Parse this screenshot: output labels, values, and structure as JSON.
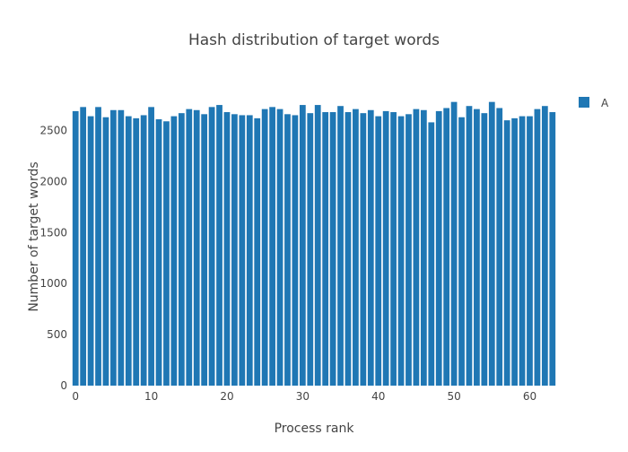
{
  "chart_data": {
    "type": "bar",
    "title": "Hash distribution of target words",
    "xlabel": "Process rank",
    "ylabel": "Number of target words",
    "xlim": [
      -0.5,
      63.5
    ],
    "ylim": [
      0,
      2900
    ],
    "x_ticks": [
      0,
      10,
      20,
      30,
      40,
      50,
      60
    ],
    "y_ticks": [
      0,
      500,
      1000,
      1500,
      2000,
      2500
    ],
    "grid": false,
    "legend_position": "top-right",
    "series": [
      {
        "name": "A",
        "color": "#1f77b4",
        "x": [
          0,
          1,
          2,
          3,
          4,
          5,
          6,
          7,
          8,
          9,
          10,
          11,
          12,
          13,
          14,
          15,
          16,
          17,
          18,
          19,
          20,
          21,
          22,
          23,
          24,
          25,
          26,
          27,
          28,
          29,
          30,
          31,
          32,
          33,
          34,
          35,
          36,
          37,
          38,
          39,
          40,
          41,
          42,
          43,
          44,
          45,
          46,
          47,
          48,
          49,
          50,
          51,
          52,
          53,
          54,
          55,
          56,
          57,
          58,
          59,
          60,
          61,
          62,
          63
        ],
        "values": [
          2690,
          2730,
          2640,
          2730,
          2630,
          2700,
          2700,
          2640,
          2620,
          2650,
          2730,
          2610,
          2590,
          2640,
          2670,
          2710,
          2700,
          2660,
          2730,
          2750,
          2680,
          2660,
          2650,
          2650,
          2620,
          2710,
          2730,
          2710,
          2660,
          2650,
          2750,
          2670,
          2750,
          2680,
          2680,
          2740,
          2680,
          2710,
          2670,
          2700,
          2640,
          2690,
          2680,
          2640,
          2660,
          2710,
          2700,
          2580,
          2690,
          2720,
          2780,
          2630,
          2740,
          2710,
          2670,
          2780,
          2720,
          2600,
          2620,
          2640,
          2640,
          2710,
          2740,
          2680
        ]
      }
    ]
  }
}
